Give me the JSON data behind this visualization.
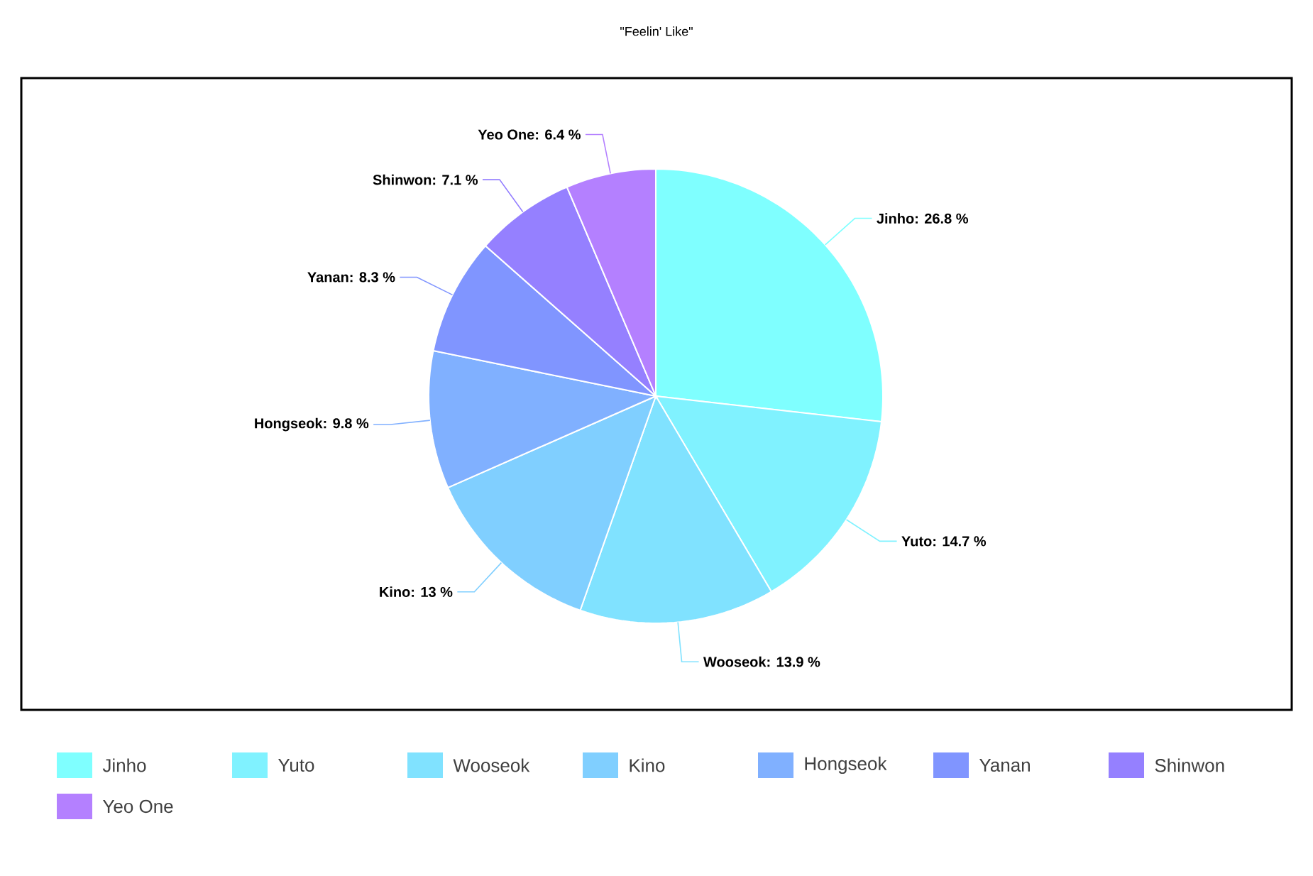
{
  "chart_data": {
    "type": "pie",
    "title": "\"Feelin' Like\"",
    "categories": [
      "Jinho",
      "Yuto",
      "Wooseok",
      "Kino",
      "Hongseok",
      "Yanan",
      "Shinwon",
      "Yeo One"
    ],
    "values": [
      26.8,
      14.7,
      13.9,
      13,
      9.8,
      8.3,
      7.1,
      6.4
    ],
    "colors": [
      "#7fffff",
      "#80f2ff",
      "#80e2ff",
      "#80cfff",
      "#80b0ff",
      "#8095ff",
      "#9580ff",
      "#b480ff"
    ],
    "value_labels": [
      "Jinho: 26.8 %",
      "Yuto: 14.7 %",
      "Wooseok: 13.9 %",
      "Kino: 13 %",
      "Hongseok: 9.8 %",
      "Yanan: 8.3 %",
      "Shinwon: 7.1 %",
      "Yeo One: 6.4 %"
    ],
    "legend": "bottom"
  }
}
